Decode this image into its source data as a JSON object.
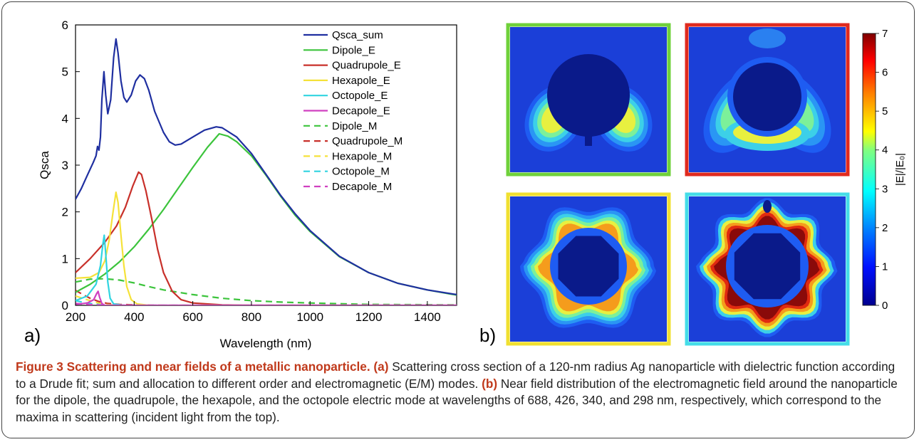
{
  "panel_a_label": "a)",
  "panel_b_label": "b)",
  "chart_data": {
    "type": "line",
    "title": "",
    "xlabel": "Wavelength (nm)",
    "ylabel": "Qsca",
    "xlim": [
      200,
      1500
    ],
    "ylim": [
      0,
      6
    ],
    "xticks": [
      200,
      400,
      600,
      800,
      1000,
      1200,
      1400
    ],
    "yticks": [
      0,
      1,
      2,
      3,
      4,
      5,
      6
    ],
    "legend_position": "top-right",
    "grid": false,
    "series": [
      {
        "name": "Qsca_sum",
        "color": "#1f2fa0",
        "dash": "solid",
        "points": [
          [
            200,
            2.27
          ],
          [
            220,
            2.5
          ],
          [
            240,
            2.78
          ],
          [
            260,
            3.05
          ],
          [
            270,
            3.2
          ],
          [
            275,
            3.4
          ],
          [
            280,
            3.32
          ],
          [
            285,
            3.6
          ],
          [
            290,
            4.4
          ],
          [
            297,
            5.0
          ],
          [
            303,
            4.5
          ],
          [
            310,
            4.1
          ],
          [
            320,
            4.4
          ],
          [
            330,
            5.3
          ],
          [
            338,
            5.7
          ],
          [
            345,
            5.4
          ],
          [
            355,
            4.8
          ],
          [
            365,
            4.45
          ],
          [
            375,
            4.35
          ],
          [
            390,
            4.5
          ],
          [
            405,
            4.8
          ],
          [
            420,
            4.93
          ],
          [
            435,
            4.85
          ],
          [
            450,
            4.6
          ],
          [
            470,
            4.15
          ],
          [
            500,
            3.7
          ],
          [
            520,
            3.5
          ],
          [
            540,
            3.43
          ],
          [
            560,
            3.45
          ],
          [
            600,
            3.6
          ],
          [
            640,
            3.75
          ],
          [
            680,
            3.82
          ],
          [
            700,
            3.8
          ],
          [
            750,
            3.6
          ],
          [
            800,
            3.25
          ],
          [
            850,
            2.8
          ],
          [
            900,
            2.35
          ],
          [
            950,
            1.95
          ],
          [
            1000,
            1.6
          ],
          [
            1100,
            1.05
          ],
          [
            1200,
            0.7
          ],
          [
            1300,
            0.47
          ],
          [
            1400,
            0.33
          ],
          [
            1500,
            0.23
          ]
        ]
      },
      {
        "name": "Dipole_E",
        "color": "#3cc43c",
        "dash": "solid",
        "points": [
          [
            200,
            0.28
          ],
          [
            250,
            0.45
          ],
          [
            300,
            0.67
          ],
          [
            350,
            0.93
          ],
          [
            400,
            1.25
          ],
          [
            450,
            1.63
          ],
          [
            500,
            2.05
          ],
          [
            550,
            2.5
          ],
          [
            600,
            2.95
          ],
          [
            650,
            3.38
          ],
          [
            690,
            3.67
          ],
          [
            720,
            3.62
          ],
          [
            750,
            3.5
          ],
          [
            800,
            3.2
          ],
          [
            850,
            2.78
          ],
          [
            900,
            2.33
          ],
          [
            950,
            1.92
          ],
          [
            1000,
            1.58
          ],
          [
            1100,
            1.04
          ],
          [
            1200,
            0.7
          ],
          [
            1300,
            0.47
          ],
          [
            1400,
            0.33
          ],
          [
            1500,
            0.22
          ]
        ]
      },
      {
        "name": "Quadrupole_E",
        "color": "#c8302a",
        "dash": "solid",
        "points": [
          [
            200,
            0.7
          ],
          [
            250,
            1.0
          ],
          [
            300,
            1.35
          ],
          [
            340,
            1.7
          ],
          [
            370,
            2.1
          ],
          [
            395,
            2.55
          ],
          [
            415,
            2.85
          ],
          [
            425,
            2.8
          ],
          [
            440,
            2.45
          ],
          [
            460,
            1.85
          ],
          [
            480,
            1.2
          ],
          [
            500,
            0.7
          ],
          [
            530,
            0.3
          ],
          [
            560,
            0.12
          ],
          [
            600,
            0.05
          ],
          [
            700,
            0.01
          ],
          [
            800,
            0.0
          ],
          [
            1500,
            0.0
          ]
        ]
      },
      {
        "name": "Hexapole_E",
        "color": "#f5e23a",
        "dash": "solid",
        "points": [
          [
            200,
            0.58
          ],
          [
            250,
            0.6
          ],
          [
            280,
            0.7
          ],
          [
            300,
            0.95
          ],
          [
            315,
            1.4
          ],
          [
            328,
            2.0
          ],
          [
            338,
            2.42
          ],
          [
            345,
            2.2
          ],
          [
            355,
            1.5
          ],
          [
            365,
            0.85
          ],
          [
            375,
            0.4
          ],
          [
            390,
            0.12
          ],
          [
            410,
            0.03
          ],
          [
            450,
            0.0
          ],
          [
            1500,
            0.0
          ]
        ]
      },
      {
        "name": "Octopole_E",
        "color": "#30d4e0",
        "dash": "solid",
        "points": [
          [
            200,
            0.1
          ],
          [
            240,
            0.2
          ],
          [
            270,
            0.45
          ],
          [
            285,
            0.85
          ],
          [
            293,
            1.3
          ],
          [
            298,
            1.5
          ],
          [
            303,
            1.1
          ],
          [
            310,
            0.5
          ],
          [
            318,
            0.15
          ],
          [
            330,
            0.03
          ],
          [
            360,
            0.0
          ],
          [
            1500,
            0.0
          ]
        ]
      },
      {
        "name": "Decapole_E",
        "color": "#d040c0",
        "dash": "solid",
        "points": [
          [
            200,
            0.02
          ],
          [
            240,
            0.05
          ],
          [
            262,
            0.12
          ],
          [
            272,
            0.25
          ],
          [
            277,
            0.3
          ],
          [
            282,
            0.18
          ],
          [
            290,
            0.04
          ],
          [
            300,
            0.0
          ],
          [
            1500,
            0.0
          ]
        ]
      },
      {
        "name": "Dipole_M",
        "color": "#3cc43c",
        "dash": "dashed",
        "points": [
          [
            200,
            0.5
          ],
          [
            250,
            0.56
          ],
          [
            300,
            0.57
          ],
          [
            350,
            0.54
          ],
          [
            400,
            0.48
          ],
          [
            450,
            0.4
          ],
          [
            500,
            0.33
          ],
          [
            600,
            0.23
          ],
          [
            700,
            0.15
          ],
          [
            800,
            0.1
          ],
          [
            900,
            0.07
          ],
          [
            1000,
            0.05
          ],
          [
            1200,
            0.02
          ],
          [
            1500,
            0.01
          ]
        ]
      },
      {
        "name": "Quadrupole_M",
        "color": "#c8302a",
        "dash": "dashed",
        "points": [
          [
            200,
            0.32
          ],
          [
            220,
            0.25
          ],
          [
            250,
            0.15
          ],
          [
            280,
            0.08
          ],
          [
            310,
            0.04
          ],
          [
            350,
            0.02
          ],
          [
            400,
            0.01
          ],
          [
            500,
            0.0
          ],
          [
            1500,
            0.0
          ]
        ]
      },
      {
        "name": "Hexapole_M",
        "color": "#f5e23a",
        "dash": "dashed",
        "points": [
          [
            200,
            0.2
          ],
          [
            230,
            0.14
          ],
          [
            260,
            0.08
          ],
          [
            290,
            0.03
          ],
          [
            320,
            0.01
          ],
          [
            400,
            0.0
          ],
          [
            1500,
            0.0
          ]
        ]
      },
      {
        "name": "Octopole_M",
        "color": "#30d4e0",
        "dash": "dashed",
        "points": [
          [
            200,
            0.1
          ],
          [
            230,
            0.06
          ],
          [
            260,
            0.03
          ],
          [
            290,
            0.01
          ],
          [
            320,
            0.0
          ],
          [
            1500,
            0.0
          ]
        ]
      },
      {
        "name": "Decapole_M",
        "color": "#d040c0",
        "dash": "dashed",
        "points": [
          [
            200,
            0.04
          ],
          [
            240,
            0.02
          ],
          [
            270,
            0.01
          ],
          [
            300,
            0.0
          ],
          [
            1500,
            0.0
          ]
        ]
      }
    ]
  },
  "near_field_panels": [
    {
      "mode": "dipole",
      "border_color": "#6fd13a"
    },
    {
      "mode": "quadrupole",
      "border_color": "#e02a1e"
    },
    {
      "mode": "hexapole",
      "border_color": "#f0e030"
    },
    {
      "mode": "octopole",
      "border_color": "#44dde8"
    }
  ],
  "colorbar": {
    "label": "|E|/|E₀|",
    "ticks": [
      "0",
      "1",
      "2",
      "3",
      "4",
      "5",
      "6",
      "7"
    ],
    "min": 0,
    "max": 7
  },
  "caption": {
    "figure_label": "Figure 3 Scattering and near fields of a metallic nanoparticle.",
    "part_a_label": "(a)",
    "part_a_text": " Scattering cross section of a 120-nm radius Ag nanoparticle with dielectric function according to a Drude fit; sum and allocation to different order and electromagnetic (E/M) modes. ",
    "part_b_label": "(b)",
    "part_b_text": " Near field distribution of the electromagnetic field around the nanoparticle for the dipole, the quadrupole, the hexapole, and the octopole electric mode at wavelengths of 688, 426, 340, and 298 nm, respectively, which correspond to the maxima in scattering (incident light from the top)."
  }
}
